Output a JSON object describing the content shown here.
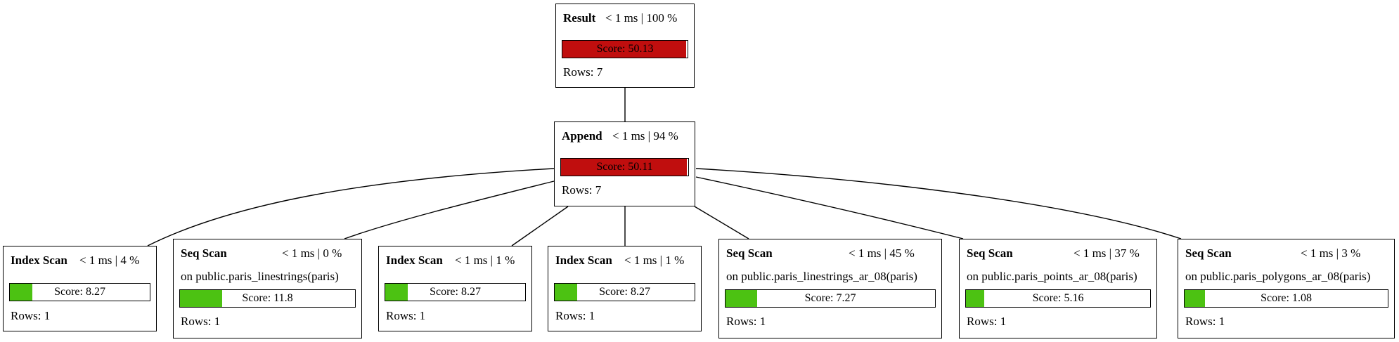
{
  "colors": {
    "high": "#c00e0e",
    "low": "#4cc212"
  },
  "nodes": [
    {
      "id": "result",
      "op": "Result",
      "timing": "< 1 ms | 100 %",
      "relation": "",
      "score_label": "Score: 50.13",
      "score_fraction": 0.99,
      "level": "high",
      "rows": "Rows: 7"
    },
    {
      "id": "append",
      "op": "Append",
      "timing": "< 1 ms | 94 %",
      "relation": "",
      "score_label": "Score: 50.11",
      "score_fraction": 0.99,
      "level": "high",
      "rows": "Rows: 7"
    },
    {
      "id": "scan1",
      "op": "Index Scan",
      "timing": "< 1 ms | 4 %",
      "relation": "",
      "score_label": "Score: 8.27",
      "score_fraction": 0.16,
      "level": "low",
      "rows": "Rows: 1"
    },
    {
      "id": "scan2",
      "op": "Seq Scan",
      "timing": "< 1 ms | 0 %",
      "relation": "on public.paris_linestrings(paris)",
      "score_label": "Score: 11.8",
      "score_fraction": 0.24,
      "level": "low",
      "rows": "Rows: 1"
    },
    {
      "id": "scan3",
      "op": "Index Scan",
      "timing": "< 1 ms | 1 %",
      "relation": "",
      "score_label": "Score: 8.27",
      "score_fraction": 0.16,
      "level": "low",
      "rows": "Rows: 1"
    },
    {
      "id": "scan4",
      "op": "Index Scan",
      "timing": "< 1 ms | 1 %",
      "relation": "",
      "score_label": "Score: 8.27",
      "score_fraction": 0.16,
      "level": "low",
      "rows": "Rows: 1"
    },
    {
      "id": "scan5",
      "op": "Seq Scan",
      "timing": "< 1 ms | 45 %",
      "relation": "on public.paris_linestrings_ar_08(paris)",
      "score_label": "Score: 7.27",
      "score_fraction": 0.15,
      "level": "low",
      "rows": "Rows: 1"
    },
    {
      "id": "scan6",
      "op": "Seq Scan",
      "timing": "< 1 ms | 37 %",
      "relation": "on public.paris_points_ar_08(paris)",
      "score_label": "Score: 5.16",
      "score_fraction": 0.1,
      "level": "low",
      "rows": "Rows: 1"
    },
    {
      "id": "scan7",
      "op": "Seq Scan",
      "timing": "< 1 ms | 3 %",
      "relation": "on public.paris_polygons_ar_08(paris)",
      "score_label": "Score: 1.08",
      "score_fraction": 0.1,
      "level": "low",
      "rows": "Rows: 1"
    }
  ]
}
